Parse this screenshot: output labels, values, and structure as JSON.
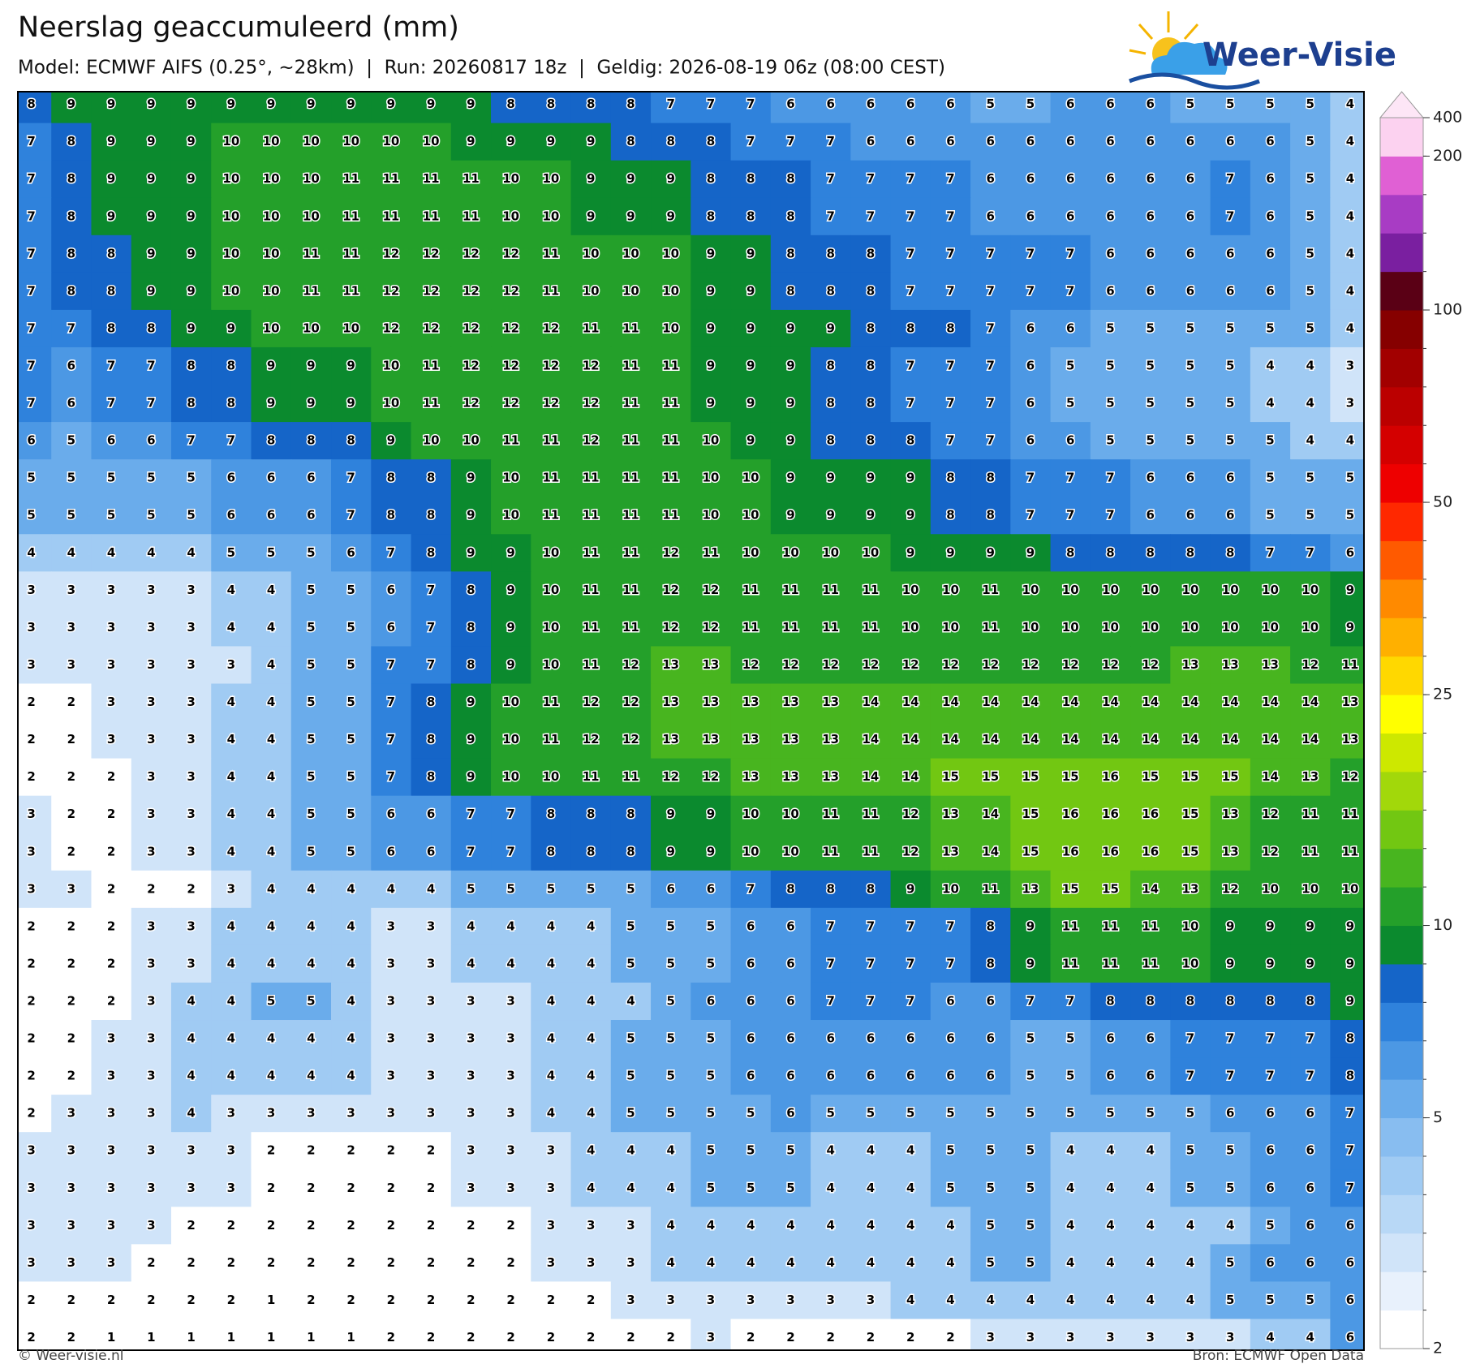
{
  "header": {
    "title": "Neerslag geaccumuleerd (mm)",
    "subtitle": "Model: ECMWF AIFS (0.25°, ~28km)  |  Run: 20260817 18z  |  Geldig: 2026-08-19 06z (08:00 CEST)"
  },
  "logo": {
    "text": "Weer-Visie"
  },
  "grid": {
    "values": [
      [
        8,
        9,
        9,
        9,
        9,
        9,
        9,
        9,
        9,
        9,
        9,
        9,
        8,
        8,
        8,
        8,
        7,
        7,
        7,
        6,
        6,
        6,
        6,
        6,
        5,
        5,
        6,
        6,
        6,
        5,
        5,
        5,
        5,
        4
      ],
      [
        7,
        8,
        9,
        9,
        9,
        10,
        10,
        10,
        10,
        10,
        10,
        9,
        9,
        9,
        9,
        8,
        8,
        8,
        7,
        7,
        7,
        6,
        6,
        6,
        6,
        6,
        6,
        6,
        6,
        6,
        6,
        6,
        5,
        4
      ],
      [
        7,
        8,
        9,
        9,
        9,
        10,
        10,
        10,
        11,
        11,
        11,
        11,
        10,
        10,
        9,
        9,
        9,
        8,
        8,
        8,
        7,
        7,
        7,
        7,
        6,
        6,
        6,
        6,
        6,
        6,
        7,
        6,
        5,
        4
      ],
      [
        7,
        8,
        9,
        9,
        9,
        10,
        10,
        10,
        11,
        11,
        11,
        11,
        10,
        10,
        9,
        9,
        9,
        8,
        8,
        8,
        7,
        7,
        7,
        7,
        6,
        6,
        6,
        6,
        6,
        6,
        7,
        6,
        5,
        4
      ],
      [
        7,
        8,
        8,
        9,
        9,
        10,
        10,
        11,
        11,
        12,
        12,
        12,
        12,
        11,
        10,
        10,
        10,
        9,
        9,
        8,
        8,
        8,
        7,
        7,
        7,
        7,
        7,
        6,
        6,
        6,
        6,
        6,
        5,
        4
      ],
      [
        7,
        8,
        8,
        9,
        9,
        10,
        10,
        11,
        11,
        12,
        12,
        12,
        12,
        11,
        10,
        10,
        10,
        9,
        9,
        8,
        8,
        8,
        7,
        7,
        7,
        7,
        7,
        6,
        6,
        6,
        6,
        6,
        5,
        4
      ],
      [
        7,
        7,
        8,
        8,
        9,
        9,
        10,
        10,
        10,
        12,
        12,
        12,
        12,
        12,
        11,
        11,
        10,
        9,
        9,
        9,
        9,
        8,
        8,
        8,
        7,
        6,
        6,
        5,
        5,
        5,
        5,
        5,
        5,
        4
      ],
      [
        7,
        6,
        7,
        7,
        8,
        8,
        9,
        9,
        9,
        10,
        11,
        12,
        12,
        12,
        12,
        11,
        11,
        9,
        9,
        9,
        8,
        8,
        7,
        7,
        7,
        6,
        5,
        5,
        5,
        5,
        5,
        4,
        4,
        3
      ],
      [
        7,
        6,
        7,
        7,
        8,
        8,
        9,
        9,
        9,
        10,
        11,
        12,
        12,
        12,
        12,
        11,
        11,
        9,
        9,
        9,
        8,
        8,
        7,
        7,
        7,
        6,
        5,
        5,
        5,
        5,
        5,
        4,
        4,
        3
      ],
      [
        6,
        5,
        6,
        6,
        7,
        7,
        8,
        8,
        8,
        9,
        10,
        10,
        11,
        11,
        12,
        11,
        11,
        10,
        9,
        9,
        8,
        8,
        8,
        7,
        7,
        6,
        6,
        5,
        5,
        5,
        5,
        5,
        4,
        4
      ],
      [
        5,
        5,
        5,
        5,
        5,
        6,
        6,
        6,
        7,
        8,
        8,
        9,
        10,
        11,
        11,
        11,
        11,
        10,
        10,
        9,
        9,
        9,
        9,
        8,
        8,
        7,
        7,
        7,
        6,
        6,
        6,
        5,
        5,
        5
      ],
      [
        5,
        5,
        5,
        5,
        5,
        6,
        6,
        6,
        7,
        8,
        8,
        9,
        10,
        11,
        11,
        11,
        11,
        10,
        10,
        9,
        9,
        9,
        9,
        8,
        8,
        7,
        7,
        7,
        6,
        6,
        6,
        5,
        5,
        5
      ],
      [
        4,
        4,
        4,
        4,
        4,
        5,
        5,
        5,
        6,
        7,
        8,
        9,
        9,
        10,
        11,
        11,
        12,
        11,
        10,
        10,
        10,
        10,
        9,
        9,
        9,
        9,
        8,
        8,
        8,
        8,
        8,
        7,
        7,
        6
      ],
      [
        3,
        3,
        3,
        3,
        3,
        4,
        4,
        5,
        5,
        6,
        7,
        8,
        9,
        10,
        11,
        11,
        12,
        12,
        11,
        11,
        11,
        11,
        10,
        10,
        11,
        10,
        10,
        10,
        10,
        10,
        10,
        10,
        10,
        9
      ],
      [
        3,
        3,
        3,
        3,
        3,
        4,
        4,
        5,
        5,
        6,
        7,
        8,
        9,
        10,
        11,
        11,
        12,
        12,
        11,
        11,
        11,
        11,
        10,
        10,
        11,
        10,
        10,
        10,
        10,
        10,
        10,
        10,
        10,
        9
      ],
      [
        3,
        3,
        3,
        3,
        3,
        3,
        4,
        5,
        5,
        7,
        7,
        8,
        9,
        10,
        11,
        12,
        13,
        13,
        12,
        12,
        12,
        12,
        12,
        12,
        12,
        12,
        12,
        12,
        12,
        13,
        13,
        13,
        12,
        11
      ],
      [
        2,
        2,
        3,
        3,
        3,
        4,
        4,
        5,
        5,
        7,
        8,
        9,
        10,
        11,
        12,
        12,
        13,
        13,
        13,
        13,
        13,
        14,
        14,
        14,
        14,
        14,
        14,
        14,
        14,
        14,
        14,
        14,
        14,
        13
      ],
      [
        2,
        2,
        3,
        3,
        3,
        4,
        4,
        5,
        5,
        7,
        8,
        9,
        10,
        11,
        12,
        12,
        13,
        13,
        13,
        13,
        13,
        14,
        14,
        14,
        14,
        14,
        14,
        14,
        14,
        14,
        14,
        14,
        14,
        13
      ],
      [
        2,
        2,
        2,
        3,
        3,
        4,
        4,
        5,
        5,
        7,
        8,
        9,
        10,
        10,
        11,
        11,
        12,
        12,
        13,
        13,
        13,
        14,
        14,
        15,
        15,
        15,
        15,
        16,
        15,
        15,
        15,
        14,
        13,
        12
      ],
      [
        3,
        2,
        2,
        3,
        3,
        4,
        4,
        5,
        5,
        6,
        6,
        7,
        7,
        8,
        8,
        8,
        9,
        9,
        10,
        10,
        11,
        11,
        12,
        13,
        14,
        15,
        16,
        16,
        16,
        15,
        13,
        12,
        11,
        11
      ],
      [
        3,
        2,
        2,
        3,
        3,
        4,
        4,
        5,
        5,
        6,
        6,
        7,
        7,
        8,
        8,
        8,
        9,
        9,
        10,
        10,
        11,
        11,
        12,
        13,
        14,
        15,
        16,
        16,
        16,
        15,
        13,
        12,
        11,
        11
      ],
      [
        3,
        3,
        2,
        2,
        2,
        3,
        4,
        4,
        4,
        4,
        4,
        5,
        5,
        5,
        5,
        5,
        6,
        6,
        7,
        8,
        8,
        8,
        9,
        10,
        11,
        13,
        15,
        15,
        14,
        13,
        12,
        10,
        10,
        10
      ],
      [
        2,
        2,
        2,
        3,
        3,
        4,
        4,
        4,
        4,
        3,
        3,
        4,
        4,
        4,
        4,
        5,
        5,
        5,
        6,
        6,
        7,
        7,
        7,
        7,
        8,
        9,
        11,
        11,
        11,
        10,
        9,
        9,
        9,
        9
      ],
      [
        2,
        2,
        2,
        3,
        3,
        4,
        4,
        4,
        4,
        3,
        3,
        4,
        4,
        4,
        4,
        5,
        5,
        5,
        6,
        6,
        7,
        7,
        7,
        7,
        8,
        9,
        11,
        11,
        11,
        10,
        9,
        9,
        9,
        9
      ],
      [
        2,
        2,
        2,
        3,
        4,
        4,
        5,
        5,
        4,
        3,
        3,
        3,
        3,
        4,
        4,
        4,
        5,
        6,
        6,
        6,
        7,
        7,
        7,
        6,
        6,
        7,
        7,
        8,
        8,
        8,
        8,
        8,
        8,
        9
      ],
      [
        2,
        2,
        3,
        3,
        4,
        4,
        4,
        4,
        4,
        3,
        3,
        3,
        3,
        4,
        4,
        5,
        5,
        5,
        6,
        6,
        6,
        6,
        6,
        6,
        6,
        5,
        5,
        6,
        6,
        7,
        7,
        7,
        7,
        8
      ],
      [
        2,
        2,
        3,
        3,
        4,
        4,
        4,
        4,
        4,
        3,
        3,
        3,
        3,
        4,
        4,
        5,
        5,
        5,
        6,
        6,
        6,
        6,
        6,
        6,
        6,
        5,
        5,
        6,
        6,
        7,
        7,
        7,
        7,
        8
      ],
      [
        2,
        3,
        3,
        3,
        4,
        3,
        3,
        3,
        3,
        3,
        3,
        3,
        3,
        4,
        4,
        5,
        5,
        5,
        5,
        6,
        5,
        5,
        5,
        5,
        5,
        5,
        5,
        5,
        5,
        5,
        6,
        6,
        6,
        7
      ],
      [
        3,
        3,
        3,
        3,
        3,
        3,
        2,
        2,
        2,
        2,
        2,
        3,
        3,
        3,
        4,
        4,
        4,
        5,
        5,
        5,
        4,
        4,
        4,
        5,
        5,
        5,
        4,
        4,
        4,
        5,
        5,
        6,
        6,
        7
      ],
      [
        3,
        3,
        3,
        3,
        3,
        3,
        2,
        2,
        2,
        2,
        2,
        3,
        3,
        3,
        4,
        4,
        4,
        5,
        5,
        5,
        4,
        4,
        4,
        5,
        5,
        5,
        4,
        4,
        4,
        5,
        5,
        6,
        6,
        7
      ],
      [
        3,
        3,
        3,
        3,
        2,
        2,
        2,
        2,
        2,
        2,
        2,
        2,
        2,
        3,
        3,
        3,
        4,
        4,
        4,
        4,
        4,
        4,
        4,
        4,
        5,
        5,
        4,
        4,
        4,
        4,
        4,
        5,
        6,
        6
      ],
      [
        3,
        3,
        3,
        2,
        2,
        2,
        2,
        2,
        2,
        2,
        2,
        2,
        2,
        3,
        3,
        3,
        4,
        4,
        4,
        4,
        4,
        4,
        4,
        4,
        5,
        5,
        4,
        4,
        4,
        4,
        5,
        6,
        6,
        6
      ],
      [
        2,
        2,
        2,
        2,
        2,
        2,
        1,
        2,
        2,
        2,
        2,
        2,
        2,
        2,
        2,
        3,
        3,
        3,
        3,
        3,
        3,
        3,
        4,
        4,
        4,
        4,
        4,
        4,
        4,
        4,
        5,
        5,
        5,
        6
      ],
      [
        2,
        2,
        1,
        1,
        1,
        1,
        1,
        1,
        1,
        2,
        2,
        2,
        2,
        2,
        2,
        2,
        2,
        3,
        2,
        2,
        2,
        2,
        2,
        2,
        3,
        3,
        3,
        3,
        3,
        3,
        3,
        4,
        4,
        6
      ]
    ]
  },
  "colorbar": {
    "levels": [
      2,
      2.5,
      3,
      3.5,
      4,
      4.5,
      5,
      6,
      7,
      8,
      9,
      10,
      12.5,
      15,
      17.5,
      20,
      22.5,
      25,
      30,
      35,
      40,
      45,
      50,
      60,
      70,
      80,
      90,
      100,
      125,
      150,
      175,
      200,
      400
    ],
    "colors": [
      "#ffffff",
      "#e8f1fc",
      "#d0e4f9",
      "#b8d8f6",
      "#a0cbf3",
      "#88bdf0",
      "#6aaceb",
      "#4c98e4",
      "#2f82dc",
      "#1565c8",
      "#0b8a2e",
      "#24a02a",
      "#48b51f",
      "#72c712",
      "#a2d80a",
      "#cde800",
      "#ffff00",
      "#ffd800",
      "#ffb000",
      "#ff8a00",
      "#ff5a00",
      "#ff2800",
      "#ee0000",
      "#d40000",
      "#bb0000",
      "#a20000",
      "#860000",
      "#5a0015",
      "#7a1fa0",
      "#a83cc4",
      "#e060d4",
      "#fcd2f0"
    ],
    "extend_color": "#fde6f6",
    "ticks": [
      2,
      5,
      10,
      25,
      50,
      100,
      200,
      400
    ]
  },
  "footer": {
    "left": "© Weer-visie.nl",
    "right": "Bron: ECMWF Open Data"
  }
}
